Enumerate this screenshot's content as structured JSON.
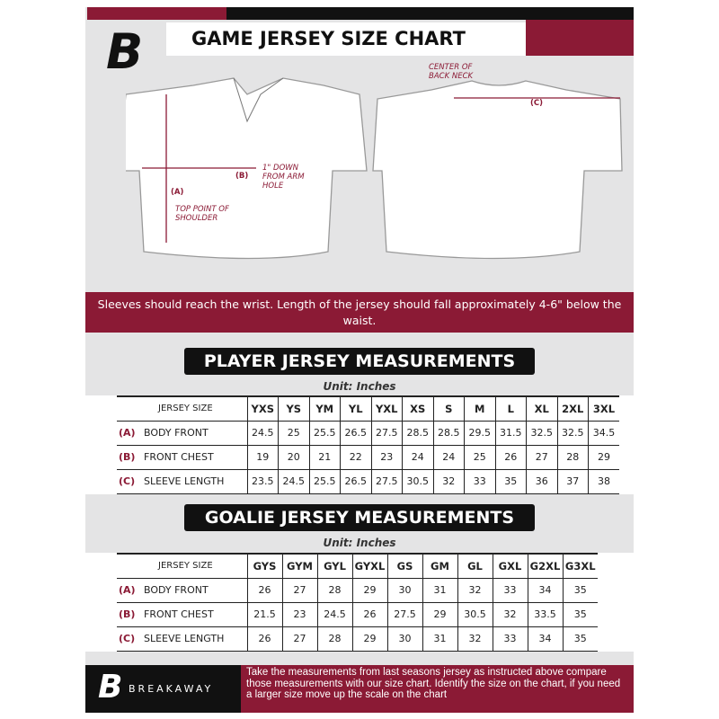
{
  "header": {
    "title": "GAME JERSEY SIZE CHART",
    "logo_letter": "B"
  },
  "diagram": {
    "front_labels": {
      "a": "(A)",
      "a_desc": "TOP POINT OF SHOULDER",
      "b": "(B)",
      "b_desc": "1\" DOWN FROM ARM HOLE"
    },
    "back_labels": {
      "c": "(C)",
      "c_desc": "CENTER OF BACK NECK"
    }
  },
  "banner": {
    "text": "Sleeves should reach the wrist. Length of the jersey should fall approximately 4-6\" below the waist."
  },
  "player": {
    "title": "PLAYER JERSEY MEASUREMENTS",
    "unit": "Unit: Inches",
    "size_header": "JERSEY SIZE",
    "sizes": [
      "YXS",
      "YS",
      "YM",
      "YL",
      "YXL",
      "XS",
      "S",
      "M",
      "L",
      "XL",
      "2XL",
      "3XL"
    ],
    "rows": [
      {
        "letter": "(A)",
        "label": "BODY FRONT",
        "values": [
          "24.5",
          "25",
          "25.5",
          "26.5",
          "27.5",
          "28.5",
          "28.5",
          "29.5",
          "31.5",
          "32.5",
          "32.5",
          "34.5"
        ]
      },
      {
        "letter": "(B)",
        "label": "FRONT CHEST",
        "values": [
          "19",
          "20",
          "21",
          "22",
          "23",
          "24",
          "24",
          "25",
          "26",
          "27",
          "28",
          "29"
        ]
      },
      {
        "letter": "(C)",
        "label": "SLEEVE LENGTH",
        "values": [
          "23.5",
          "24.5",
          "25.5",
          "26.5",
          "27.5",
          "30.5",
          "32",
          "33",
          "35",
          "36",
          "37",
          "38"
        ]
      }
    ]
  },
  "goalie": {
    "title": "GOALIE JERSEY MEASUREMENTS",
    "unit": "Unit: Inches",
    "size_header": "JERSEY SIZE",
    "sizes": [
      "GYS",
      "GYM",
      "GYL",
      "GYXL",
      "GS",
      "GM",
      "GL",
      "GXL",
      "G2XL",
      "G3XL"
    ],
    "rows": [
      {
        "letter": "(A)",
        "label": "BODY FRONT",
        "values": [
          "26",
          "27",
          "28",
          "29",
          "30",
          "31",
          "32",
          "33",
          "34",
          "35"
        ]
      },
      {
        "letter": "(B)",
        "label": "FRONT CHEST",
        "values": [
          "21.5",
          "23",
          "24.5",
          "26",
          "27.5",
          "29",
          "30.5",
          "32",
          "33.5",
          "35"
        ]
      },
      {
        "letter": "(C)",
        "label": "SLEEVE LENGTH",
        "values": [
          "26",
          "27",
          "28",
          "29",
          "30",
          "31",
          "32",
          "33",
          "34",
          "35"
        ]
      }
    ]
  },
  "footer": {
    "brand": "BREAKAWAY",
    "text": "Take the measurements from last seasons jersey as instructed above compare those measurements  with our size chart. Identify the size on the chart, if you need a larger size move up the scale on the chart"
  },
  "colors": {
    "accent": "#8b1a35",
    "dark": "#111111",
    "background": "#e4e4e5"
  }
}
